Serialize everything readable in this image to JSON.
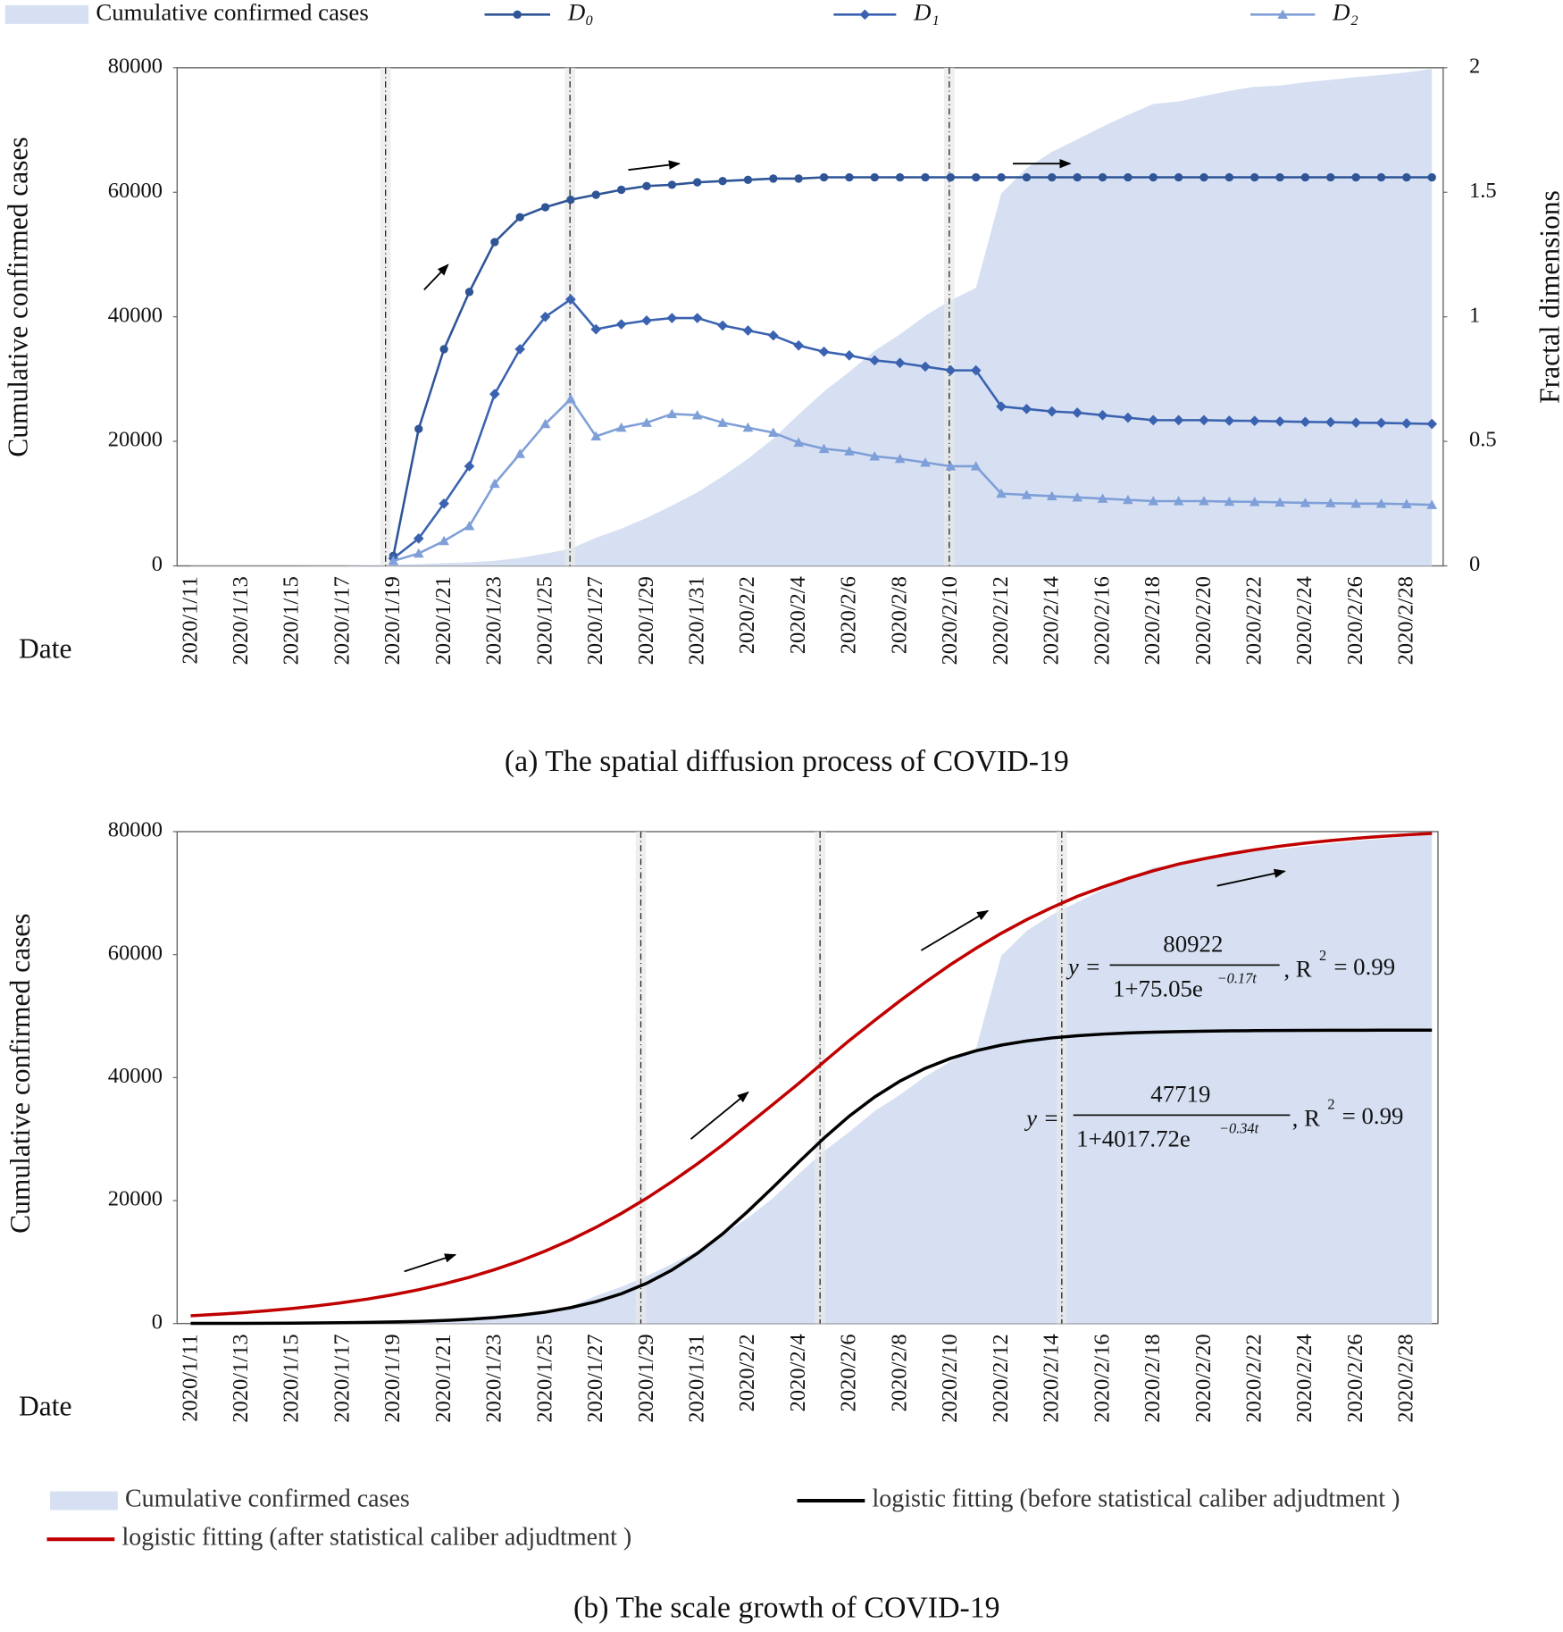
{
  "chart_data": [
    {
      "type": "line",
      "caption": "(a) The spatial diffusion process of COVID-19",
      "x_label": "Date",
      "y_label": "Cumulative confirmed cases",
      "y2_label": "Fractal dimensions",
      "categories": [
        "2020/1/11",
        null,
        "2020/1/13",
        null,
        "2020/1/15",
        null,
        "2020/1/17",
        null,
        "2020/1/19",
        null,
        "2020/1/21",
        null,
        "2020/1/23",
        null,
        "2020/1/25",
        null,
        "2020/1/27",
        null,
        "2020/1/29",
        null,
        "2020/1/31",
        null,
        "2020/2/2",
        null,
        "2020/2/4",
        null,
        "2020/2/6",
        null,
        "2020/2/8",
        null,
        "2020/2/10",
        null,
        "2020/2/12",
        null,
        "2020/2/14",
        null,
        "2020/2/16",
        null,
        "2020/2/18",
        null,
        "2020/2/20",
        null,
        "2020/2/22",
        null,
        "2020/2/24",
        null,
        "2020/2/26",
        null,
        "2020/2/28",
        null
      ],
      "ylim": [
        0,
        80000
      ],
      "yticks": [
        0,
        20000,
        40000,
        60000,
        80000
      ],
      "y2lim": [
        0,
        2
      ],
      "y2ticks": [
        0,
        0.5,
        1,
        1.5,
        2
      ],
      "legend": "top",
      "series": [
        {
          "name": "Cumulative confirmed cases",
          "kind": "area",
          "color": "#d6e0f2",
          "values": [
            41,
            41,
            41,
            41,
            41,
            45,
            62,
            121,
            198,
            291,
            440,
            571,
            830,
            1287,
            1975,
            2744,
            4515,
            5974,
            7711,
            9692,
            11791,
            14380,
            17205,
            20438,
            24324,
            28018,
            31161,
            34546,
            37198,
            40171,
            42638,
            44653,
            59804,
            63851,
            66492,
            68500,
            70548,
            72436,
            74185,
            74576,
            75465,
            76288,
            76936,
            77150,
            77658,
            78064,
            78497,
            78824,
            79251,
            79824
          ]
        },
        {
          "name": "D₀",
          "kind": "line",
          "marker": "circle",
          "color": "#2f5597",
          "axis": "y2",
          "values": [
            null,
            null,
            null,
            null,
            null,
            null,
            null,
            null,
            0.04,
            0.55,
            0.87,
            1.1,
            1.3,
            1.4,
            1.44,
            1.47,
            1.49,
            1.51,
            1.525,
            1.53,
            1.54,
            1.545,
            1.55,
            1.555,
            1.555,
            1.56,
            1.56,
            1.56,
            1.56,
            1.56,
            1.56,
            1.56,
            1.56,
            1.56,
            1.56,
            1.56,
            1.56,
            1.56,
            1.56,
            1.56,
            1.56,
            1.56,
            1.56,
            1.56,
            1.56,
            1.56,
            1.56,
            1.56,
            1.56,
            1.56
          ]
        },
        {
          "name": "D₁",
          "kind": "line",
          "marker": "diamond",
          "color": "#3a62b0",
          "axis": "y2",
          "values": [
            null,
            null,
            null,
            null,
            null,
            null,
            null,
            null,
            0.03,
            0.11,
            0.25,
            0.4,
            0.69,
            0.87,
            1.0,
            1.07,
            0.95,
            0.97,
            0.985,
            0.995,
            0.995,
            0.965,
            0.945,
            0.925,
            0.885,
            0.86,
            0.845,
            0.825,
            0.815,
            0.8,
            0.785,
            0.785,
            0.64,
            0.63,
            0.62,
            0.615,
            0.605,
            0.595,
            0.585,
            0.585,
            0.585,
            0.583,
            0.582,
            0.58,
            0.578,
            0.577,
            0.575,
            0.574,
            0.572,
            0.57
          ]
        },
        {
          "name": "D₂",
          "kind": "line",
          "marker": "triangle",
          "color": "#7f9fd8",
          "axis": "y2",
          "values": [
            null,
            null,
            null,
            null,
            null,
            null,
            null,
            null,
            0.02,
            0.05,
            0.1,
            0.16,
            0.33,
            0.45,
            0.57,
            0.67,
            0.52,
            0.555,
            0.575,
            0.61,
            0.605,
            0.575,
            0.555,
            0.535,
            0.495,
            0.47,
            0.46,
            0.44,
            0.43,
            0.415,
            0.4,
            0.4,
            0.29,
            0.285,
            0.28,
            0.275,
            0.27,
            0.265,
            0.26,
            0.26,
            0.26,
            0.258,
            0.257,
            0.255,
            0.253,
            0.252,
            0.25,
            0.25,
            0.248,
            0.245
          ]
        }
      ]
    },
    {
      "type": "line",
      "caption": "(b) The scale growth of COVID-19",
      "x_label": "Date",
      "y_label": "Cumulative confirmed cases",
      "categories": [
        "2020/1/11",
        null,
        "2020/1/13",
        null,
        "2020/1/15",
        null,
        "2020/1/17",
        null,
        "2020/1/19",
        null,
        "2020/1/21",
        null,
        "2020/1/23",
        null,
        "2020/1/25",
        null,
        "2020/1/27",
        null,
        "2020/1/29",
        null,
        "2020/1/31",
        null,
        "2020/2/2",
        null,
        "2020/2/4",
        null,
        "2020/2/6",
        null,
        "2020/2/8",
        null,
        "2020/2/10",
        null,
        "2020/2/12",
        null,
        "2020/2/14",
        null,
        "2020/2/16",
        null,
        "2020/2/18",
        null,
        "2020/2/20",
        null,
        "2020/2/22",
        null,
        "2020/2/24",
        null,
        "2020/2/26",
        null,
        "2020/2/28",
        null
      ],
      "ylim": [
        0,
        80000
      ],
      "yticks": [
        0,
        20000,
        40000,
        60000,
        80000
      ],
      "legend": "bottom",
      "series": [
        {
          "name": "Cumulative confirmed cases",
          "kind": "area",
          "color": "#d6e0f2",
          "values": [
            41,
            41,
            41,
            41,
            41,
            45,
            62,
            121,
            198,
            291,
            440,
            571,
            830,
            1287,
            1975,
            2744,
            4515,
            5974,
            7711,
            9692,
            11791,
            14380,
            17205,
            20438,
            24324,
            28018,
            31161,
            34546,
            37198,
            40171,
            42638,
            44653,
            59804,
            63851,
            66492,
            68500,
            70548,
            72436,
            74185,
            74576,
            75465,
            76288,
            76936,
            77150,
            77658,
            78064,
            78497,
            78824,
            79251,
            79824
          ]
        },
        {
          "name": "logistic fitting (before statistical caliber adjudtment )",
          "kind": "line",
          "color": "#000000",
          "values": [
            16.7,
            23.4,
            32.9,
            46.2,
            64.9,
            91.2,
            128,
            179.5,
            252,
            353,
            494,
            690,
            962,
            1345,
            1862,
            2584,
            3553,
            4838,
            6540,
            8705,
            11397,
            14589,
            18268,
            22195,
            26238,
            30151,
            33733,
            36840,
            39429,
            41510,
            43127,
            44357,
            45278,
            45954,
            46451,
            46809,
            47067,
            47253,
            47386,
            47482,
            47550,
            47599,
            47633,
            47658,
            47676,
            47688,
            47697,
            47703,
            47708,
            47711
          ]
        },
        {
          "name": "logistic fitting (after statistical caliber adjudtment )",
          "kind": "line",
          "color": "#c00000",
          "values": [
            1258,
            1487,
            1756,
            2074,
            2446,
            2884,
            3396,
            3994,
            4691,
            5501,
            6438,
            7521,
            8764,
            10180,
            11794,
            13609,
            15643,
            17903,
            20373,
            23074,
            25970,
            29046,
            32356,
            35680,
            39036,
            42568,
            46031,
            49283,
            52478,
            55502,
            58385,
            61027,
            63468,
            65683,
            67661,
            69461,
            70984,
            72381,
            73632,
            74720,
            75585,
            76370,
            77046,
            77630,
            78125,
            78549,
            78917,
            79219,
            79482,
            79702
          ]
        }
      ],
      "annotations": [
        {
          "lhs": "y =",
          "numerator": "80922",
          "denominator": "1+75.05e",
          "exponent": "−0.17t",
          "r": ", R",
          "r_exp": "2",
          "r_value": "= 0.99"
        },
        {
          "lhs": "y =",
          "numerator": "47719",
          "denominator": "1+4017.72e",
          "exponent": "−0.34t",
          "r": ", R",
          "r_exp": "2",
          "r_value": "= 0.99"
        }
      ]
    }
  ]
}
